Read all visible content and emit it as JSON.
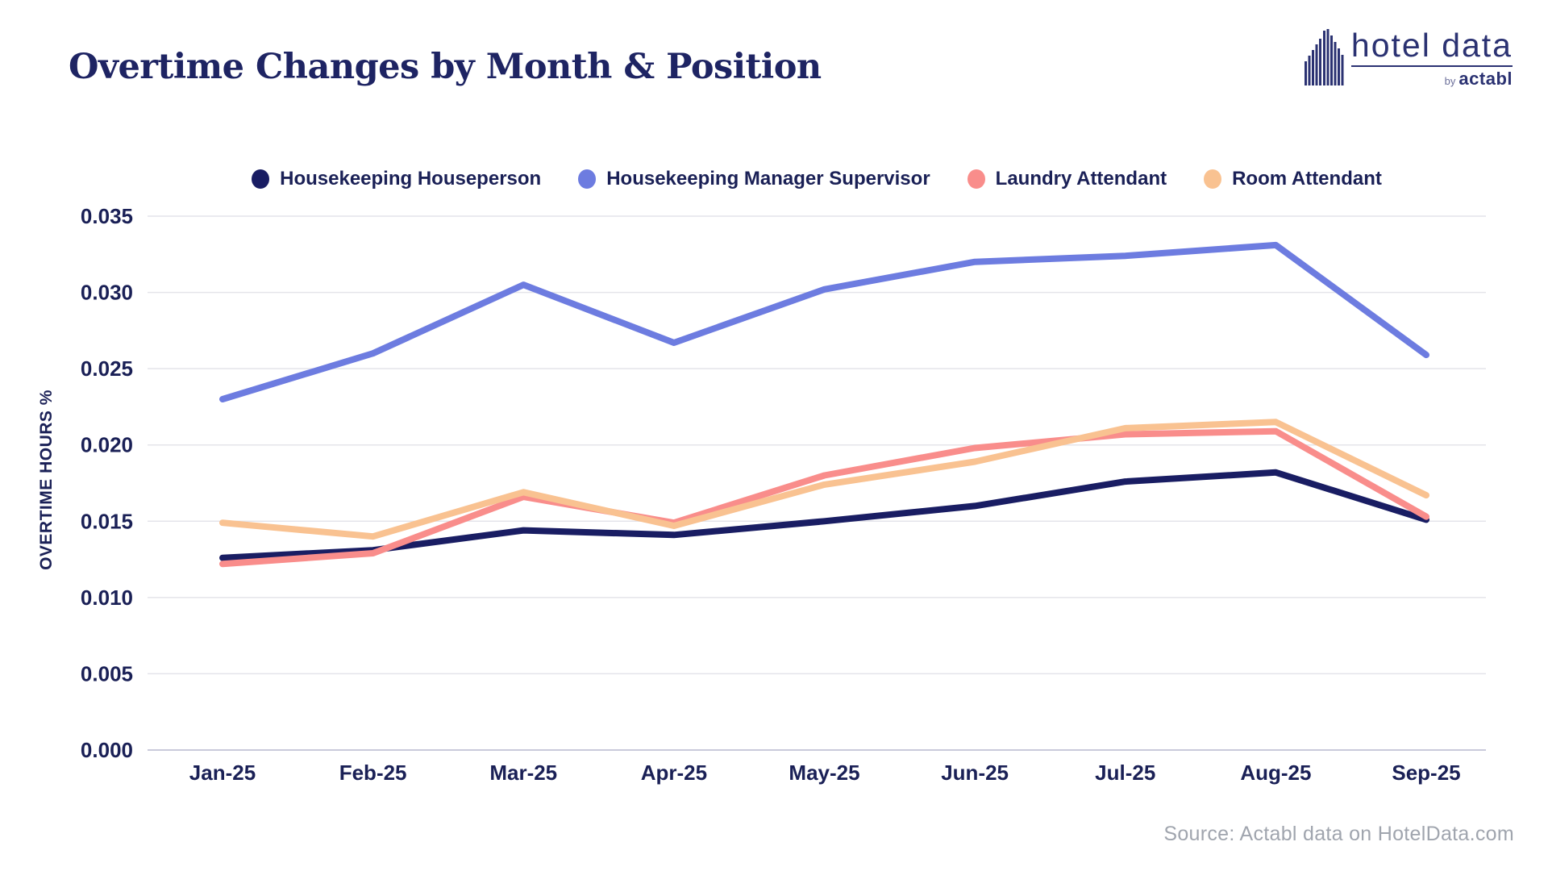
{
  "header": {
    "title": "Overtime Changes by Month & Position"
  },
  "logo": {
    "icon": "building-bars-icon",
    "brand": "hotel data",
    "byline_prefix": "by",
    "byline_brand": "actabl"
  },
  "source": {
    "text": "Source: Actabl data on HotelData.com"
  },
  "colors": {
    "title_text": "#1E2463",
    "axis_text": "#1A2056",
    "gridline": "#E4E4EA",
    "zero_gridline": "#C9CADB",
    "source_text": "#A0A5AE",
    "logo_navy": "#2B3272",
    "background": "#FFFFFF"
  },
  "chart_data": {
    "type": "line",
    "title": "Overtime Changes by Month & Position",
    "xlabel": "",
    "ylabel": "OVERTIME HOURS %",
    "categories": [
      "Jan-25",
      "Feb-25",
      "Mar-25",
      "Apr-25",
      "May-25",
      "Jun-25",
      "Jul-25",
      "Aug-25",
      "Sep-25"
    ],
    "series": [
      {
        "name": "Housekeeping Houseperson",
        "color": "#191D63",
        "values": [
          0.0126,
          0.0131,
          0.0144,
          0.0141,
          0.015,
          0.016,
          0.0176,
          0.0182,
          0.0151
        ]
      },
      {
        "name": "Housekeeping Manager Supervisor",
        "color": "#6D7CE0",
        "values": [
          0.023,
          0.026,
          0.0305,
          0.0267,
          0.0302,
          0.032,
          0.0324,
          0.0331,
          0.0259
        ]
      },
      {
        "name": "Laundry Attendant",
        "color": "#F98D8B",
        "values": [
          0.0122,
          0.0129,
          0.0166,
          0.0149,
          0.018,
          0.0198,
          0.0207,
          0.0209,
          0.0153
        ]
      },
      {
        "name": "Room Attendant",
        "color": "#F9C291",
        "values": [
          0.0149,
          0.014,
          0.0169,
          0.0147,
          0.0174,
          0.0189,
          0.0211,
          0.0215,
          0.0167
        ]
      }
    ],
    "ylim": [
      0,
      0.035
    ],
    "yticks": [
      0.0,
      0.005,
      0.01,
      0.015,
      0.02,
      0.025,
      0.03,
      0.035
    ],
    "ytick_decimals": 3,
    "grid": true,
    "legend_position": "top-center"
  }
}
